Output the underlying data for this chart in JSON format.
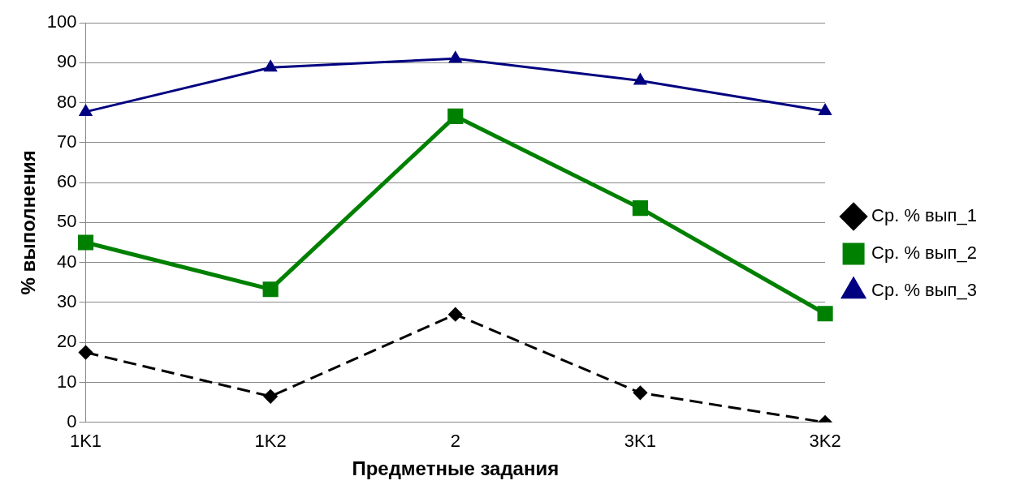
{
  "chart_data": {
    "type": "line",
    "xlabel": "Предметные задания",
    "ylabel": "% выполнения",
    "categories": [
      "1K1",
      "1K2",
      "2",
      "3K1",
      "3K2"
    ],
    "series": [
      {
        "name": "Ср. % вып_1",
        "color": "#000000",
        "values": [
          17.5,
          6.5,
          27,
          7.4,
          0
        ],
        "marker": "diamond",
        "line_style": "dashed"
      },
      {
        "name": "Ср. % вып_2",
        "color": "#008000",
        "values": [
          45,
          33.3,
          76.6,
          53.6,
          27.2
        ],
        "marker": "square",
        "line_style": "solid"
      },
      {
        "name": "Ср. % вып_3",
        "color": "#000080",
        "values": [
          77.7,
          88.8,
          91,
          85.5,
          77.9
        ],
        "marker": "triangle",
        "line_style": "solid"
      }
    ],
    "ylim": [
      0,
      100
    ],
    "yticks": [
      0,
      10,
      20,
      30,
      40,
      50,
      60,
      70,
      80,
      90,
      100
    ],
    "grid": "y",
    "legend": "right"
  }
}
